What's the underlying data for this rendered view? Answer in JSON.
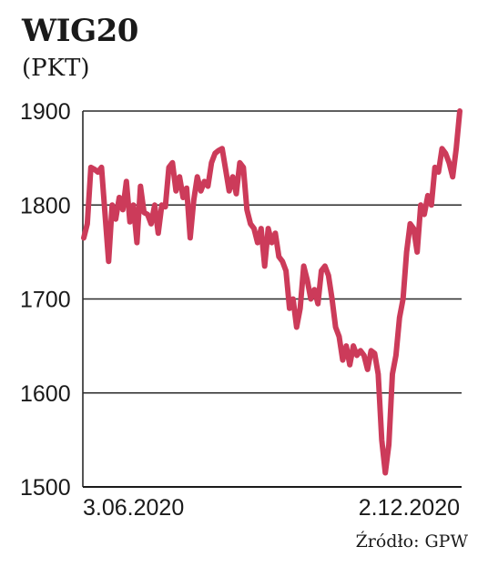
{
  "chart_data": {
    "type": "line",
    "title": "WIG20",
    "subtitle": "(PKT)",
    "source": "Źródło: GPW",
    "ylim": [
      1500,
      1900
    ],
    "yticks": [
      1500,
      1600,
      1700,
      1800,
      1900
    ],
    "xtick_labels": [
      "3.06.2020",
      "2.12.2020"
    ],
    "grid": true,
    "line_color": "#cc3b5a",
    "series": [
      {
        "values": [
          1765,
          1780,
          1840,
          1838,
          1835,
          1840,
          1790,
          1740,
          1800,
          1785,
          1808,
          1795,
          1825,
          1782,
          1800,
          1760,
          1820,
          1792,
          1790,
          1780,
          1800,
          1770,
          1800,
          1798,
          1840,
          1845,
          1815,
          1830,
          1808,
          1818,
          1765,
          1805,
          1830,
          1815,
          1825,
          1820,
          1845,
          1855,
          1858,
          1860,
          1838,
          1815,
          1830,
          1812,
          1845,
          1840,
          1795,
          1780,
          1775,
          1760,
          1775,
          1735,
          1775,
          1760,
          1770,
          1745,
          1740,
          1730,
          1690,
          1700,
          1670,
          1690,
          1735,
          1720,
          1700,
          1710,
          1695,
          1730,
          1735,
          1725,
          1700,
          1670,
          1660,
          1635,
          1650,
          1630,
          1650,
          1640,
          1645,
          1640,
          1625,
          1645,
          1642,
          1620,
          1550,
          1515,
          1545,
          1620,
          1640,
          1680,
          1700,
          1750,
          1780,
          1775,
          1750,
          1800,
          1790,
          1810,
          1800,
          1840,
          1835,
          1860,
          1855,
          1845,
          1830,
          1860,
          1900
        ]
      }
    ]
  }
}
